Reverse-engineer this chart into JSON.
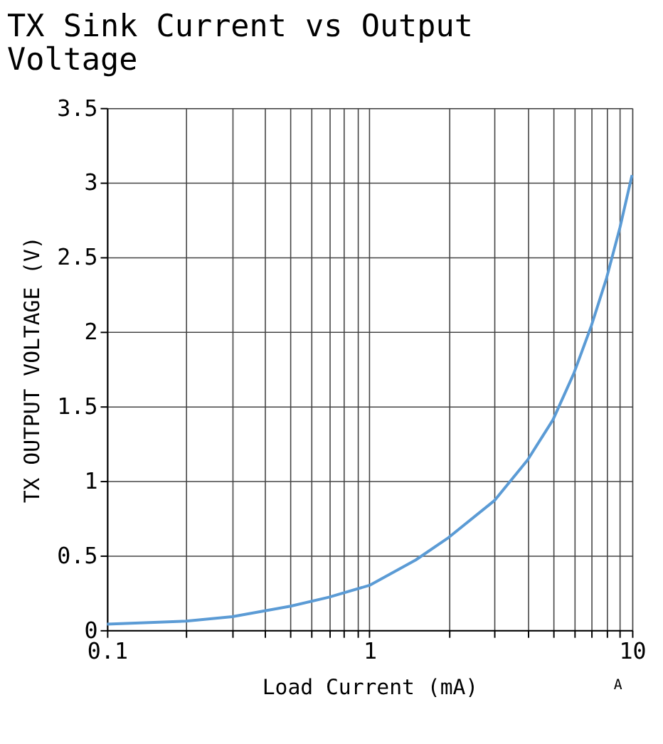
{
  "chart_data": {
    "type": "line",
    "title": "TX Sink Current vs Output Voltage",
    "xlabel": "Load Current (mA)",
    "ylabel": "TX OUTPUT VOLTAGE (V)",
    "x": [
      0.1,
      0.2,
      0.3,
      0.5,
      0.7,
      1,
      1.5,
      2,
      3,
      4,
      5,
      6,
      7,
      8,
      9,
      10
    ],
    "series": [
      {
        "color": "#5b9bd5",
        "values": [
          0.04,
          0.06,
          0.09,
          0.16,
          0.22,
          0.3,
          0.47,
          0.62,
          0.87,
          1.14,
          1.41,
          1.72,
          2.04,
          2.36,
          2.7,
          3.05
        ]
      }
    ],
    "log": "x",
    "xlim": [
      0.1,
      10
    ],
    "ylim": [
      0,
      3.5
    ],
    "xticks": [
      0.1,
      {
        "value": 0.2,
        "label": null
      },
      {
        "value": 0.3,
        "label": null
      },
      {
        "value": 0.4,
        "label": null
      },
      {
        "value": 0.5,
        "label": null
      },
      {
        "value": 0.6,
        "label": null
      },
      {
        "value": 0.7,
        "label": null
      },
      {
        "value": 0.8,
        "label": null
      },
      {
        "value": 0.9,
        "label": null
      },
      1,
      {
        "value": 2,
        "label": null
      },
      {
        "value": 3,
        "label": null
      },
      {
        "value": 4,
        "label": null
      },
      {
        "value": 5,
        "label": null
      },
      {
        "value": 6,
        "label": null
      },
      {
        "value": 7,
        "label": null
      },
      {
        "value": 8,
        "label": null
      },
      {
        "value": 9,
        "label": null
      },
      10
    ],
    "yticks": [
      0,
      0.5,
      1,
      1.5,
      2,
      2.5,
      3,
      3.5
    ],
    "grid": true,
    "marker": "none",
    "line_style": "solid",
    "annotations": [
      "A"
    ]
  }
}
